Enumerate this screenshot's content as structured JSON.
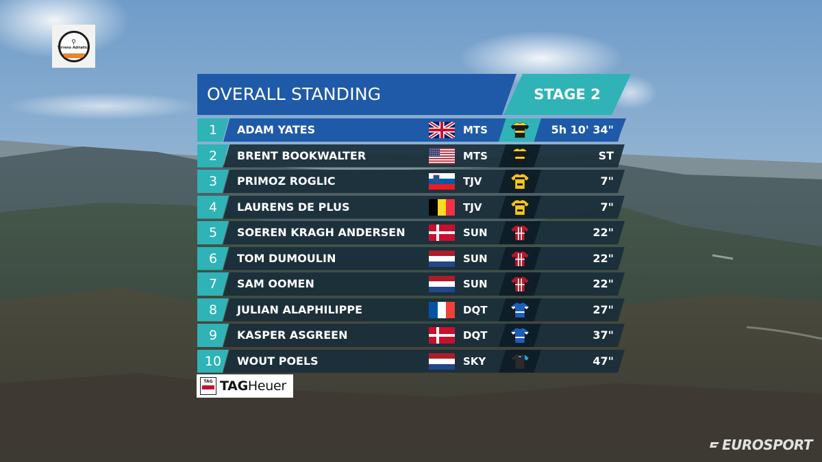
{
  "event": {
    "logo_name": "Tirreno Adriatico",
    "logo_icon": "bicycle-icon"
  },
  "header": {
    "title": "OVERALL STANDING",
    "stage": "STAGE 2"
  },
  "standings": [
    {
      "rank": "1",
      "rider": "ADAM YATES",
      "flag": "gbr",
      "team": "MTS",
      "jersey": "mitchelton-scott",
      "time": "5h 10' 34\""
    },
    {
      "rank": "2",
      "rider": "BRENT BOOKWALTER",
      "flag": "usa",
      "team": "MTS",
      "jersey": "mitchelton-scott",
      "time": "ST"
    },
    {
      "rank": "3",
      "rider": "PRIMOZ ROGLIC",
      "flag": "svn",
      "team": "TJV",
      "jersey": "jumbo-visma",
      "time": "7\""
    },
    {
      "rank": "4",
      "rider": "LAURENS DE PLUS",
      "flag": "bel",
      "team": "TJV",
      "jersey": "jumbo-visma",
      "time": "7\""
    },
    {
      "rank": "5",
      "rider": "SOEREN KRAGH ANDERSEN",
      "flag": "den",
      "team": "SUN",
      "jersey": "sunweb",
      "time": "22\""
    },
    {
      "rank": "6",
      "rider": "TOM DUMOULIN",
      "flag": "ned",
      "team": "SUN",
      "jersey": "sunweb",
      "time": "22\""
    },
    {
      "rank": "7",
      "rider": "SAM OOMEN",
      "flag": "ned",
      "team": "SUN",
      "jersey": "sunweb",
      "time": "22\""
    },
    {
      "rank": "8",
      "rider": "JULIAN ALAPHILIPPE",
      "flag": "fra",
      "team": "DQT",
      "jersey": "deceuninck-quickstep",
      "time": "27\""
    },
    {
      "rank": "9",
      "rider": "KASPER ASGREEN",
      "flag": "den",
      "team": "DQT",
      "jersey": "deceuninck-quickstep",
      "time": "37\""
    },
    {
      "rank": "10",
      "rider": "WOUT POELS",
      "flag": "ned",
      "team": "SKY",
      "jersey": "sky",
      "time": "47\""
    }
  ],
  "sponsor": {
    "shield_text": "TAG",
    "brand_bold": "TAG",
    "brand_rest": "Heuer"
  },
  "broadcaster": {
    "name": "EUROSPORT"
  },
  "colors": {
    "header_blue": "#1f5aa8",
    "accent_teal": "#2fb3b7",
    "row_dark": "#1a2e3a"
  }
}
